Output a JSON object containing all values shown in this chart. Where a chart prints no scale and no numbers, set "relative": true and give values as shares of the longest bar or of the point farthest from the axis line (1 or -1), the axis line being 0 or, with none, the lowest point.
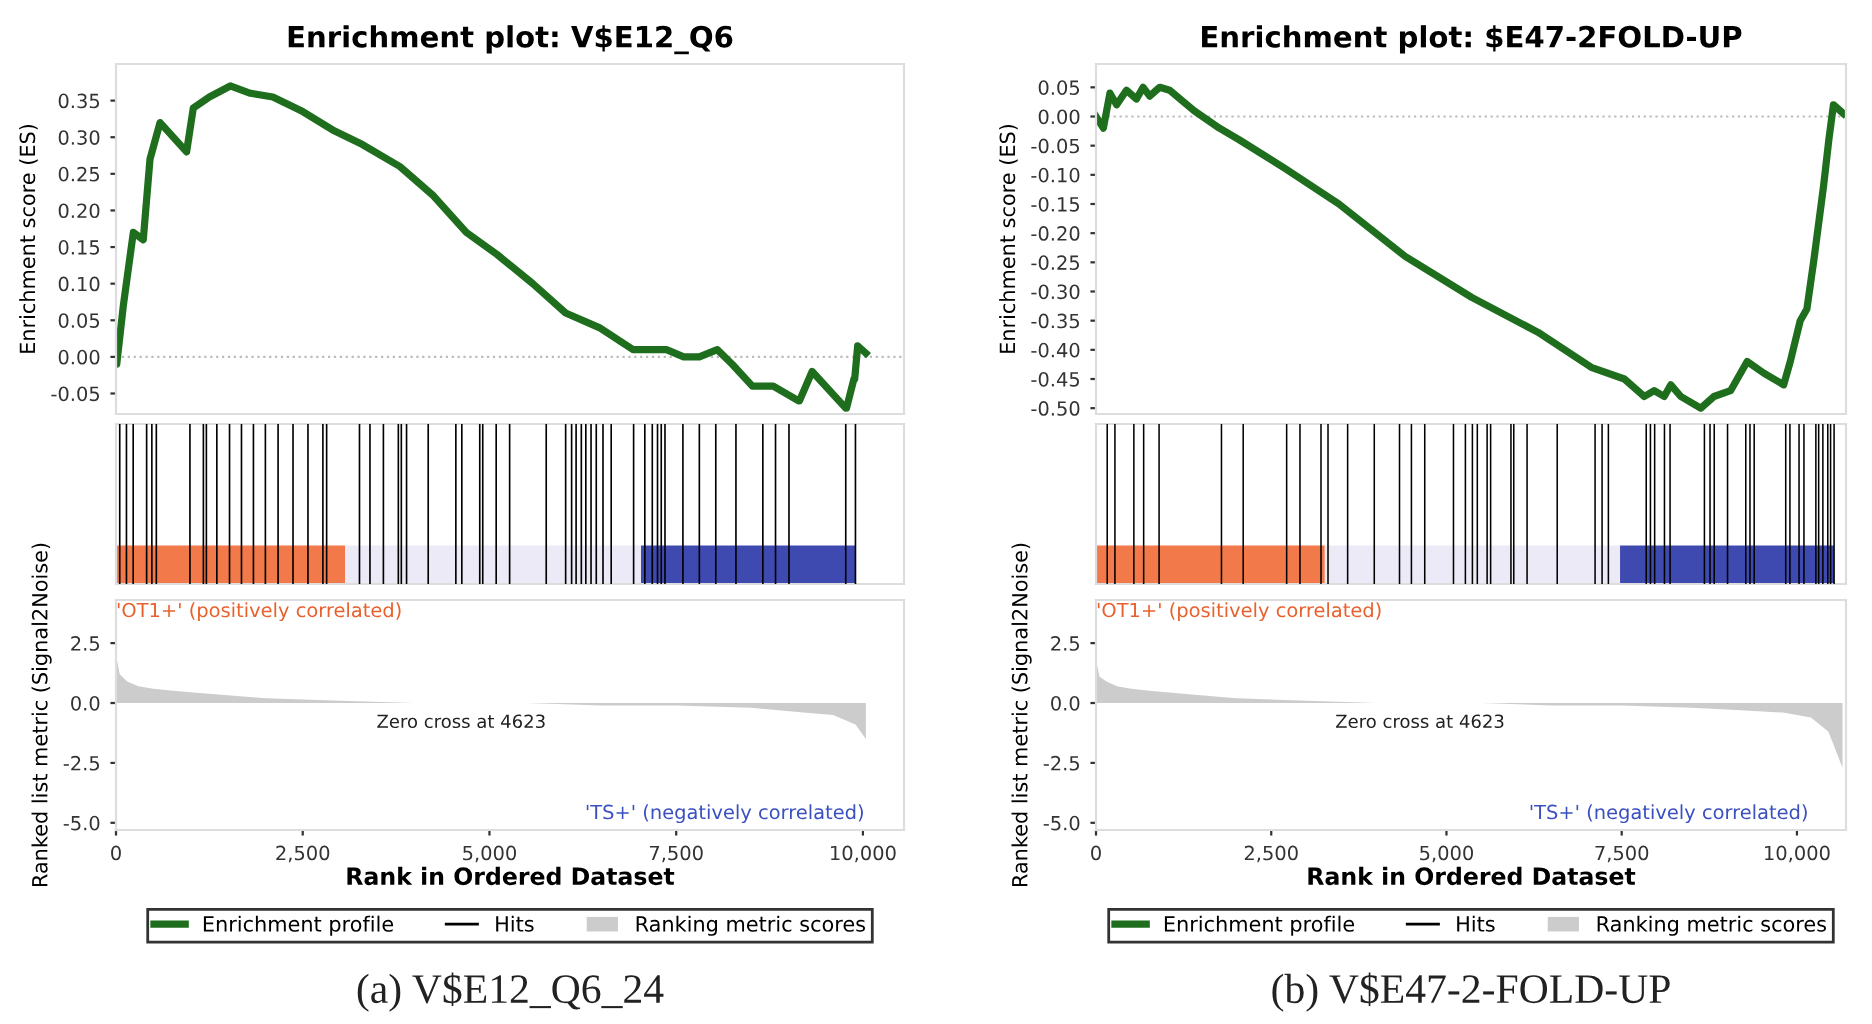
{
  "chart_data": [
    {
      "type": "line",
      "title": "Enrichment plot: V$E12_Q6",
      "ylabel": "Enrichment score (ES)",
      "xlim": [
        0,
        10550
      ],
      "ylim": [
        -0.078,
        0.4
      ],
      "yticks": [
        {
          "value": -0.05,
          "label": "-0.05"
        },
        {
          "value": 0,
          "label": "0.00"
        },
        {
          "value": 0.05,
          "label": "0.05"
        },
        {
          "value": 0.1,
          "label": "0.10"
        },
        {
          "value": 0.15,
          "label": "0.15"
        },
        {
          "value": 0.2,
          "label": "0.20"
        },
        {
          "value": 0.25,
          "label": "0.25"
        },
        {
          "value": 0.3,
          "label": "0.30"
        },
        {
          "value": 0.35,
          "label": "0.35"
        }
      ],
      "tick_labels": "y",
      "legend": "bottom",
      "ref_lines": [
        {
          "axis": "y",
          "value": 0,
          "color": "#bbbbbb",
          "line_style": "dotted"
        }
      ],
      "series": [
        {
          "name": "Enrichment profile",
          "color": "#1e6e1e",
          "x": [
            0,
            10,
            98,
            232,
            365,
            455,
            590,
            945,
            1035,
            1250,
            1530,
            1800,
            2100,
            2500,
            2900,
            3300,
            3800,
            4250,
            4690,
            5100,
            5580,
            6020,
            6470,
            6920,
            7370,
            7600,
            7810,
            8050,
            8250,
            8520,
            8800,
            9140,
            9150,
            9320,
            9770,
            9780,
            9880,
            9890,
            9930,
            10040
          ],
          "values": [
            0.0,
            -0.01,
            0.07,
            0.17,
            0.16,
            0.27,
            0.32,
            0.28,
            0.34,
            0.355,
            0.37,
            0.36,
            0.355,
            0.335,
            0.31,
            0.29,
            0.26,
            0.22,
            0.17,
            0.14,
            0.1,
            0.06,
            0.04,
            0.01,
            0.01,
            0.0,
            0.0,
            0.01,
            -0.01,
            -0.04,
            -0.04,
            -0.06,
            -0.06,
            -0.02,
            -0.07,
            -0.07,
            -0.03,
            -0.03,
            0.015,
            0.005
          ]
        }
      ]
    },
    {
      "type": "bar",
      "relative": true,
      "xlim": [
        0,
        10550
      ],
      "tick_labels": false,
      "legend": "bottom",
      "series": [
        {
          "name": "Hits",
          "color": "#000000",
          "x": [
            50,
            140,
            230,
            410,
            480,
            540,
            990,
            1170,
            1210,
            1350,
            1520,
            1680,
            1840,
            2000,
            2170,
            2370,
            2570,
            2770,
            2820,
            3260,
            3400,
            3580,
            3780,
            3820,
            3890,
            4180,
            4550,
            4630,
            4870,
            4910,
            5090,
            5270,
            5760,
            6020,
            6100,
            6160,
            6230,
            6290,
            6360,
            6430,
            6520,
            6630,
            6930,
            7080,
            7180,
            7250,
            7300,
            7350,
            7590,
            7810,
            8030,
            8300,
            8660,
            8830,
            9010,
            9770,
            9900
          ],
          "values": [
            1,
            1,
            1,
            1,
            1,
            1,
            1,
            1,
            1,
            1,
            1,
            1,
            1,
            1,
            1,
            1,
            1,
            1,
            1,
            1,
            1,
            1,
            1,
            1,
            1,
            1,
            1,
            1,
            1,
            1,
            1,
            1,
            1,
            1,
            1,
            1,
            1,
            1,
            1,
            1,
            1,
            1,
            1,
            1,
            1,
            1,
            1,
            1,
            1,
            1,
            1,
            1,
            1,
            1,
            1,
            1,
            1
          ]
        }
      ]
    },
    {
      "type": "area",
      "xlabel": "Rank in Ordered Dataset",
      "ylabel": "Ranked list metric (Signal2Noise)",
      "xlim": [
        0,
        10550
      ],
      "ylim": [
        -5.3,
        4.3
      ],
      "xticks": [
        {
          "value": 0,
          "label": "0"
        },
        {
          "value": 2500,
          "label": "2,500"
        },
        {
          "value": 5000,
          "label": "5,000"
        },
        {
          "value": 7500,
          "label": "7,500"
        },
        {
          "value": 10000,
          "label": "10,000"
        }
      ],
      "yticks": [
        {
          "value": -5,
          "label": "-5.0"
        },
        {
          "value": -2.5,
          "label": "-2.5"
        },
        {
          "value": 0,
          "label": "0.0"
        },
        {
          "value": 2.5,
          "label": "2.5"
        }
      ],
      "legend": "bottom",
      "annotations": [
        "'OT1+' (positively correlated)",
        {
          "text": "Zero cross at 4623",
          "x": 4623,
          "y": 0
        },
        "'TS+' (negatively correlated)",
        "(a) V$E12_Q6_24"
      ],
      "series": [
        {
          "name": "Ranking metric scores",
          "color": "#cccccc",
          "x": [
            0,
            50,
            150,
            300,
            500,
            800,
            1200,
            2000,
            3000,
            4000,
            4623,
            5500,
            6500,
            7500,
            8500,
            9200,
            9600,
            9900,
            10040
          ],
          "values": [
            2.0,
            1.2,
            0.9,
            0.7,
            0.6,
            0.5,
            0.4,
            0.2,
            0.1,
            0.0,
            0,
            0.0,
            -0.1,
            -0.1,
            -0.2,
            -0.4,
            -0.5,
            -0.9,
            -1.5
          ]
        }
      ]
    },
    {
      "type": "line",
      "title": "Enrichment plot: $E47-2FOLD-UP",
      "ylabel": "Enrichment score (ES)",
      "xlim": [
        0,
        10700
      ],
      "ylim": [
        -0.51,
        0.09
      ],
      "yticks": [
        {
          "value": -0.5,
          "label": "-0.50"
        },
        {
          "value": -0.45,
          "label": "-0.45"
        },
        {
          "value": -0.4,
          "label": "-0.40"
        },
        {
          "value": -0.35,
          "label": "-0.35"
        },
        {
          "value": -0.3,
          "label": "-0.30"
        },
        {
          "value": -0.25,
          "label": "-0.25"
        },
        {
          "value": -0.2,
          "label": "-0.20"
        },
        {
          "value": -0.15,
          "label": "-0.15"
        },
        {
          "value": -0.1,
          "label": "-0.10"
        },
        {
          "value": -0.05,
          "label": "-0.05"
        },
        {
          "value": 0,
          "label": "0.00"
        },
        {
          "value": 0.05,
          "label": "0.05"
        }
      ],
      "tick_labels": "y",
      "legend": "bottom",
      "ref_lines": [
        {
          "axis": "y",
          "value": 0,
          "color": "#bbbbbb",
          "line_style": "dotted"
        }
      ],
      "series": [
        {
          "name": "Enrichment profile",
          "color": "#1e6e1e",
          "x": [
            0,
            105,
            199,
            294,
            435,
            577,
            672,
            767,
            909,
            1051,
            1400,
            1761,
            2045,
            2708,
            3466,
            4413,
            5360,
            6307,
            7065,
            7538,
            7822,
            7964,
            8106,
            8201,
            8343,
            8627,
            8816,
            9053,
            9290,
            9527,
            9811,
            9905,
            10047,
            10142,
            10237,
            10379,
            10455,
            10521,
            10663
          ],
          "values": [
            0.0,
            -0.02,
            0.04,
            0.02,
            0.045,
            0.03,
            0.05,
            0.035,
            0.05,
            0.045,
            0.01,
            -0.02,
            -0.04,
            -0.09,
            -0.15,
            -0.24,
            -0.31,
            -0.37,
            -0.43,
            -0.45,
            -0.48,
            -0.47,
            -0.48,
            -0.46,
            -0.48,
            -0.5,
            -0.48,
            -0.47,
            -0.42,
            -0.44,
            -0.46,
            -0.42,
            -0.35,
            -0.33,
            -0.25,
            -0.12,
            -0.04,
            0.02,
            0.005
          ]
        }
      ]
    },
    {
      "type": "bar",
      "relative": true,
      "xlim": [
        0,
        10700
      ],
      "tick_labels": false,
      "legend": "bottom",
      "series": [
        {
          "name": "Hits",
          "color": "#000000",
          "x": [
            160,
            270,
            540,
            680,
            900,
            1790,
            2100,
            2720,
            2910,
            3210,
            3310,
            3590,
            3970,
            4330,
            4500,
            4690,
            5100,
            5270,
            5370,
            5440,
            5580,
            5630,
            5920,
            5960,
            6150,
            6580,
            7120,
            7220,
            7310,
            7850,
            7910,
            7970,
            8110,
            8190,
            8680,
            8760,
            8820,
            9010,
            9270,
            9330,
            9390,
            9840,
            9900,
            10030,
            10100,
            10270,
            10310,
            10370,
            10440,
            10480,
            10530
          ],
          "values": [
            1,
            1,
            1,
            1,
            1,
            1,
            1,
            1,
            1,
            1,
            1,
            1,
            1,
            1,
            1,
            1,
            1,
            1,
            1,
            1,
            1,
            1,
            1,
            1,
            1,
            1,
            1,
            1,
            1,
            1,
            1,
            1,
            1,
            1,
            1,
            1,
            1,
            1,
            1,
            1,
            1,
            1,
            1,
            1,
            1,
            1,
            1,
            1,
            1,
            1,
            1
          ]
        }
      ]
    },
    {
      "type": "area",
      "xlabel": "Rank in Ordered Dataset",
      "ylabel": "Ranked list metric (Signal2Noise)",
      "xlim": [
        0,
        10700
      ],
      "ylim": [
        -5.3,
        4.3
      ],
      "xticks": [
        {
          "value": 0,
          "label": "0"
        },
        {
          "value": 2500,
          "label": "2,500"
        },
        {
          "value": 5000,
          "label": "5,000"
        },
        {
          "value": 7500,
          "label": "7,500"
        },
        {
          "value": 10000,
          "label": "10,000"
        }
      ],
      "yticks": [
        {
          "value": -5,
          "label": "-5.0"
        },
        {
          "value": -2.5,
          "label": "-2.5"
        },
        {
          "value": 0,
          "label": "0.0"
        },
        {
          "value": 2.5,
          "label": "2.5"
        }
      ],
      "legend": "bottom",
      "annotations": [
        "'OT1+' (positively correlated)",
        {
          "text": "Zero cross at 4623",
          "x": 4623,
          "y": 0
        },
        "'TS+' (negatively correlated)",
        "(b) V$E47-2-FOLD-UP"
      ],
      "series": [
        {
          "name": "Ranking metric scores",
          "color": "#cccccc",
          "x": [
            0,
            50,
            150,
            300,
            500,
            800,
            1200,
            2000,
            3000,
            4000,
            4623,
            5500,
            6500,
            7500,
            8500,
            9200,
            9800,
            10200,
            10450,
            10650
          ],
          "values": [
            1.8,
            1.1,
            0.9,
            0.7,
            0.6,
            0.5,
            0.4,
            0.2,
            0.1,
            0.0,
            0,
            0.0,
            -0.1,
            -0.1,
            -0.2,
            -0.3,
            -0.4,
            -0.6,
            -1.2,
            -2.7
          ]
        }
      ]
    }
  ]
}
